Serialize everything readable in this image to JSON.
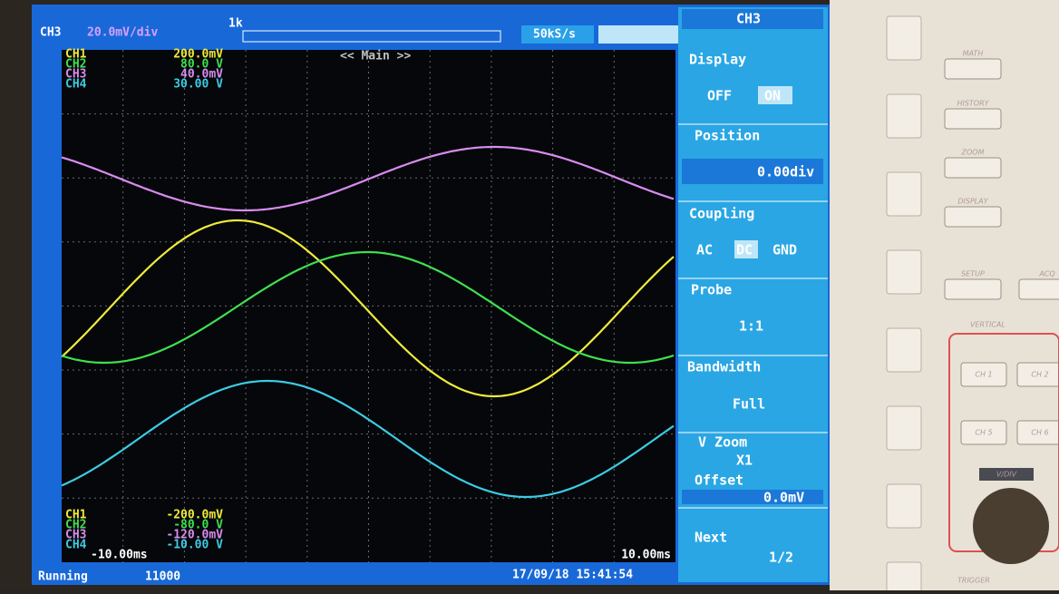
{
  "top_bar": {
    "channel": "CH3",
    "scale": "20.0mV/div",
    "record": "1k",
    "sample_rate": "50kS/s"
  },
  "screen": {
    "label": "<< Main >>",
    "upper_scales": [
      {
        "channel": "CH1",
        "value": "200.0mV"
      },
      {
        "channel": "CH2",
        "value": "80.0 V"
      },
      {
        "channel": "CH3",
        "value": "40.0mV"
      },
      {
        "channel": "CH4",
        "value": "30.00 V"
      }
    ],
    "lower_scales": [
      {
        "channel": "CH1",
        "value": "-200.0mV"
      },
      {
        "channel": "CH2",
        "value": "-80.0 V"
      },
      {
        "channel": "CH3",
        "value": "-120.0mV"
      },
      {
        "channel": "CH4",
        "value": "-10.00 V"
      }
    ],
    "time_start": "-10.00ms",
    "time_end": "10.00ms"
  },
  "status": {
    "state": "Running",
    "count": "11000",
    "datetime": "17/09/18 15:41:54"
  },
  "menu": {
    "title": "CH3",
    "display": {
      "label": "Display",
      "off": "OFF",
      "on": "ON"
    },
    "position": {
      "label": "Position",
      "value": "0.00div"
    },
    "coupling": {
      "label": "Coupling",
      "ac": "AC",
      "dc": "DC",
      "gnd": "GND"
    },
    "probe": {
      "label": "Probe",
      "value": "1:1"
    },
    "bandwidth": {
      "label": "Bandwidth",
      "value": "Full"
    },
    "vzoom": {
      "label": "V Zoom",
      "value": "X1"
    },
    "offset": {
      "label": "Offset",
      "value": "0.0mV"
    },
    "next": {
      "label": "Next",
      "value": "1/2"
    }
  },
  "panel": {
    "buttons": [
      "MATH",
      "HISTORY",
      "ZOOM",
      "DISPLAY",
      "SETUP",
      "ACQ"
    ],
    "section": "VERTICAL",
    "channels": [
      "CH 1",
      "CH 2",
      "CH 5",
      "CH 6"
    ],
    "knob": "V/DIV",
    "trigger": "TRIGGER"
  }
}
